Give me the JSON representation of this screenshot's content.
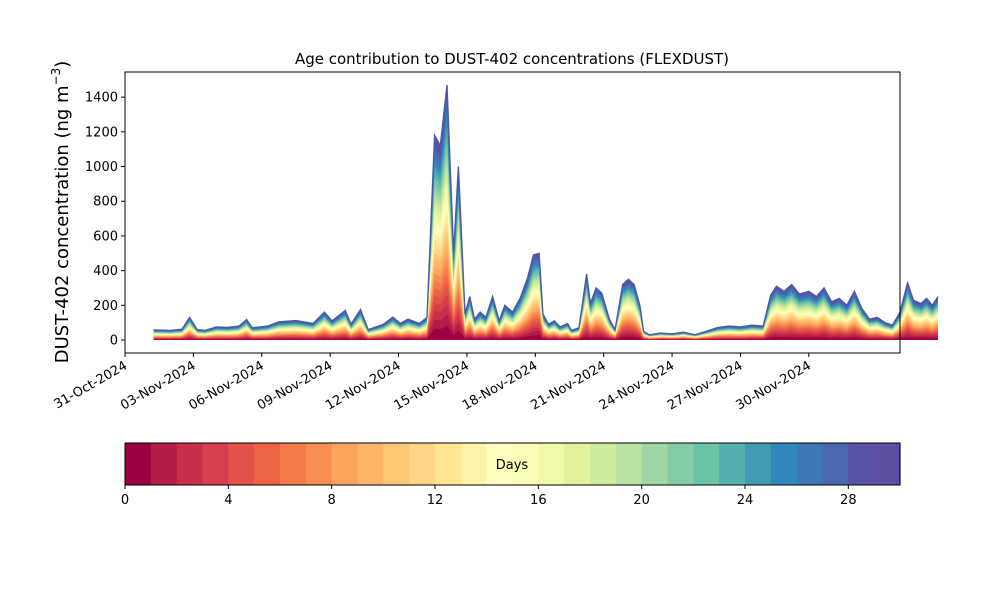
{
  "chart_data": {
    "type": "area",
    "title": "Age contribution to DUST-402 concentrations (FLEXDUST)",
    "xlabel": "",
    "ylabel_main": "DUST-402 concentration (ng m",
    "ylabel_sup": "−3",
    "ylabel_close": ")",
    "ylim": [
      -75,
      1545
    ],
    "y_ticks": [
      0,
      200,
      400,
      600,
      800,
      1000,
      1200,
      1400
    ],
    "x_range": [
      "2024-10-31T00:00",
      "2024-12-04T00:00"
    ],
    "x_ticks": [
      {
        "date": "2024-10-31",
        "label": "31-Oct-2024"
      },
      {
        "date": "2024-11-03",
        "label": "03-Nov-2024"
      },
      {
        "date": "2024-11-06",
        "label": "06-Nov-2024"
      },
      {
        "date": "2024-11-09",
        "label": "09-Nov-2024"
      },
      {
        "date": "2024-11-12",
        "label": "12-Nov-2024"
      },
      {
        "date": "2024-11-15",
        "label": "15-Nov-2024"
      },
      {
        "date": "2024-11-18",
        "label": "18-Nov-2024"
      },
      {
        "date": "2024-11-21",
        "label": "21-Nov-2024"
      },
      {
        "date": "2024-11-24",
        "label": "24-Nov-2024"
      },
      {
        "date": "2024-11-27",
        "label": "27-Nov-2024"
      },
      {
        "date": "2024-11-30",
        "label": "30-Nov-2024"
      }
    ],
    "series_total": {
      "name": "Total",
      "points": [
        [
          "2024-11-01T06:00",
          58
        ],
        [
          "2024-11-02T00:00",
          55
        ],
        [
          "2024-11-02T12:00",
          62
        ],
        [
          "2024-11-02T20:00",
          130
        ],
        [
          "2024-11-03T04:00",
          60
        ],
        [
          "2024-11-03T12:00",
          55
        ],
        [
          "2024-11-04T00:00",
          75
        ],
        [
          "2024-11-04T12:00",
          72
        ],
        [
          "2024-11-05T00:00",
          80
        ],
        [
          "2024-11-05T08:00",
          118
        ],
        [
          "2024-11-05T14:00",
          70
        ],
        [
          "2024-11-06T06:00",
          80
        ],
        [
          "2024-11-06T18:00",
          105
        ],
        [
          "2024-11-07T12:00",
          112
        ],
        [
          "2024-11-08T06:00",
          95
        ],
        [
          "2024-11-08T18:00",
          160
        ],
        [
          "2024-11-09T02:00",
          110
        ],
        [
          "2024-11-09T16:00",
          170
        ],
        [
          "2024-11-09T22:00",
          90
        ],
        [
          "2024-11-10T08:00",
          175
        ],
        [
          "2024-11-10T16:00",
          60
        ],
        [
          "2024-11-11T08:00",
          90
        ],
        [
          "2024-11-11T18:00",
          132
        ],
        [
          "2024-11-12T02:00",
          95
        ],
        [
          "2024-11-12T10:00",
          120
        ],
        [
          "2024-11-12T22:00",
          95
        ],
        [
          "2024-11-13T06:00",
          130
        ],
        [
          "2024-11-13T14:00",
          1180
        ],
        [
          "2024-11-13T20:00",
          1120
        ],
        [
          "2024-11-14T03:00",
          1470
        ],
        [
          "2024-11-14T10:00",
          500
        ],
        [
          "2024-11-14T15:00",
          1000
        ],
        [
          "2024-11-14T22:00",
          150
        ],
        [
          "2024-11-15T03:00",
          250
        ],
        [
          "2024-11-15T08:00",
          120
        ],
        [
          "2024-11-15T14:00",
          160
        ],
        [
          "2024-11-15T20:00",
          130
        ],
        [
          "2024-11-16T03:00",
          250
        ],
        [
          "2024-11-16T10:00",
          110
        ],
        [
          "2024-11-16T16:00",
          200
        ],
        [
          "2024-11-17T00:00",
          160
        ],
        [
          "2024-11-17T08:00",
          240
        ],
        [
          "2024-11-17T16:00",
          360
        ],
        [
          "2024-11-17T22:00",
          490
        ],
        [
          "2024-11-18T04:00",
          500
        ],
        [
          "2024-11-18T08:00",
          150
        ],
        [
          "2024-11-18T14:00",
          90
        ],
        [
          "2024-11-18T20:00",
          110
        ],
        [
          "2024-11-19T02:00",
          75
        ],
        [
          "2024-11-19T10:00",
          95
        ],
        [
          "2024-11-19T14:00",
          55
        ],
        [
          "2024-11-19T22:00",
          70
        ],
        [
          "2024-11-20T06:00",
          380
        ],
        [
          "2024-11-20T10:00",
          210
        ],
        [
          "2024-11-20T16:00",
          300
        ],
        [
          "2024-11-20T22:00",
          270
        ],
        [
          "2024-11-21T06:00",
          120
        ],
        [
          "2024-11-21T12:00",
          60
        ],
        [
          "2024-11-21T20:00",
          320
        ],
        [
          "2024-11-22T02:00",
          350
        ],
        [
          "2024-11-22T08:00",
          320
        ],
        [
          "2024-11-22T14:00",
          200
        ],
        [
          "2024-11-22T18:00",
          50
        ],
        [
          "2024-11-23T00:00",
          30
        ],
        [
          "2024-11-23T12:00",
          40
        ],
        [
          "2024-11-24T00:00",
          35
        ],
        [
          "2024-11-24T12:00",
          45
        ],
        [
          "2024-11-25T00:00",
          30
        ],
        [
          "2024-11-25T12:00",
          50
        ],
        [
          "2024-11-26T00:00",
          72
        ],
        [
          "2024-11-26T12:00",
          80
        ],
        [
          "2024-11-27T00:00",
          75
        ],
        [
          "2024-11-27T12:00",
          85
        ],
        [
          "2024-11-28T00:00",
          80
        ],
        [
          "2024-11-28T08:00",
          260
        ],
        [
          "2024-11-28T14:00",
          310
        ],
        [
          "2024-11-28T22:00",
          280
        ],
        [
          "2024-11-29T06:00",
          320
        ],
        [
          "2024-11-29T14:00",
          265
        ],
        [
          "2024-11-30T00:00",
          280
        ],
        [
          "2024-11-30T08:00",
          250
        ],
        [
          "2024-11-30T16:00",
          300
        ],
        [
          "2024-12-01T00:00",
          220
        ],
        [
          "2024-12-01T08:00",
          240
        ],
        [
          "2024-12-01T16:00",
          200
        ],
        [
          "2024-12-02T00:00",
          280
        ],
        [
          "2024-12-02T08:00",
          180
        ],
        [
          "2024-12-02T16:00",
          120
        ],
        [
          "2024-12-03T00:00",
          130
        ],
        [
          "2024-12-03T08:00",
          100
        ],
        [
          "2024-12-03T16:00",
          85
        ],
        [
          "2024-12-04T00:00",
          160
        ],
        [
          "2024-12-04T08:00",
          330
        ],
        [
          "2024-12-04T14:00",
          230
        ],
        [
          "2024-12-04T22:00",
          210
        ],
        [
          "2024-12-05T04:00",
          240
        ],
        [
          "2024-12-05T10:00",
          200
        ],
        [
          "2024-12-05T16:00",
          250
        ]
      ]
    },
    "colorbar": {
      "label": "Days",
      "min": 0,
      "max": 30,
      "ticks": [
        0,
        4,
        8,
        12,
        16,
        20,
        24,
        28
      ],
      "colors": [
        "#9e0142",
        "#b51b47",
        "#c82d4b",
        "#d73f4f",
        "#e25249",
        "#ed6444",
        "#f67a49",
        "#f98e52",
        "#fca55d",
        "#fdb668",
        "#fec575",
        "#fed686",
        "#fee593",
        "#fff1a8",
        "#fffebe",
        "#f8fcb4",
        "#f0f9a8",
        "#e2f39a",
        "#cfeb9e",
        "#b9e2a0",
        "#9ed7a4",
        "#83cca5",
        "#6bc3a7",
        "#56afad",
        "#439ab4",
        "#3287bc",
        "#3c78b6",
        "#4a69ae",
        "#5853a4",
        "#5e4fa2"
      ]
    }
  }
}
